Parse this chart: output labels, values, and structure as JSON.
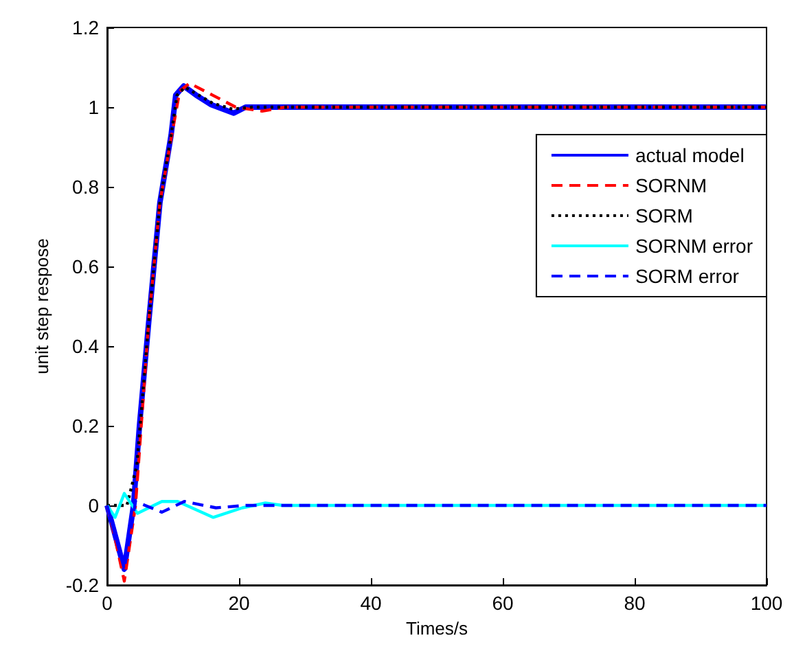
{
  "chart_data": {
    "type": "line",
    "xlabel": "Times/s",
    "ylabel": "unit step respose",
    "xlim": [
      0,
      100
    ],
    "xticks": [
      0,
      20,
      40,
      60,
      80,
      100
    ],
    "ylim": [
      -0.2,
      1.2
    ],
    "yticks": [
      -0.2,
      0,
      0.2,
      0.4,
      0.6,
      0.8,
      1,
      1.2
    ],
    "grid": false,
    "legend": "top right",
    "marker": "none",
    "series": [
      {
        "name": "actual model",
        "color": "#0000ff",
        "line_style": "solid",
        "x": [
          0,
          1.3,
          2.6,
          4,
          4.9,
          6.3,
          8,
          9.7,
          10.4,
          11.6,
          13.5,
          15.8,
          19.2,
          21,
          30,
          100
        ],
        "values": [
          0,
          -0.08,
          -0.16,
          0,
          0.2,
          0.46,
          0.76,
          0.93,
          1.03,
          1.053,
          1.03,
          1.006,
          0.985,
          1,
          1,
          1
        ]
      },
      {
        "name": "SORNM",
        "color": "#ff0000",
        "line_style": "dashed",
        "x": [
          0,
          1.3,
          2.6,
          4.3,
          6.3,
          8,
          9.8,
          11,
          12.5,
          16,
          19.5,
          23.5,
          27,
          100
        ],
        "values": [
          0,
          -0.09,
          -0.19,
          0,
          0.46,
          0.76,
          0.93,
          1.04,
          1.06,
          1.03,
          1,
          0.99,
          1,
          1
        ]
      },
      {
        "name": "SORM",
        "color": "#000000",
        "line_style": "dotted",
        "x": [
          0,
          3,
          4.5,
          6.3,
          8,
          9.7,
          10.6,
          11.8,
          16,
          19,
          22,
          100
        ],
        "values": [
          0,
          0,
          0.1,
          0.46,
          0.76,
          0.93,
          1.03,
          1.05,
          1.01,
          0.995,
          1,
          1
        ]
      },
      {
        "name": "SORNM error",
        "color": "#00ffff",
        "line_style": "solid",
        "x": [
          0,
          1.2,
          2.6,
          4.6,
          8.3,
          10.7,
          16.1,
          20.5,
          24,
          26.6,
          100
        ],
        "values": [
          0,
          -0.03,
          0.03,
          -0.02,
          0.01,
          0.01,
          -0.03,
          -0.006,
          0.006,
          0,
          0
        ]
      },
      {
        "name": "SORM error",
        "color": "#0000ff",
        "line_style": "dashed",
        "x": [
          0,
          2.6,
          4.3,
          8.3,
          11.7,
          16.5,
          21,
          100
        ],
        "values": [
          0,
          -0.16,
          0.01,
          -0.017,
          0.01,
          -0.006,
          0,
          0
        ]
      }
    ]
  }
}
